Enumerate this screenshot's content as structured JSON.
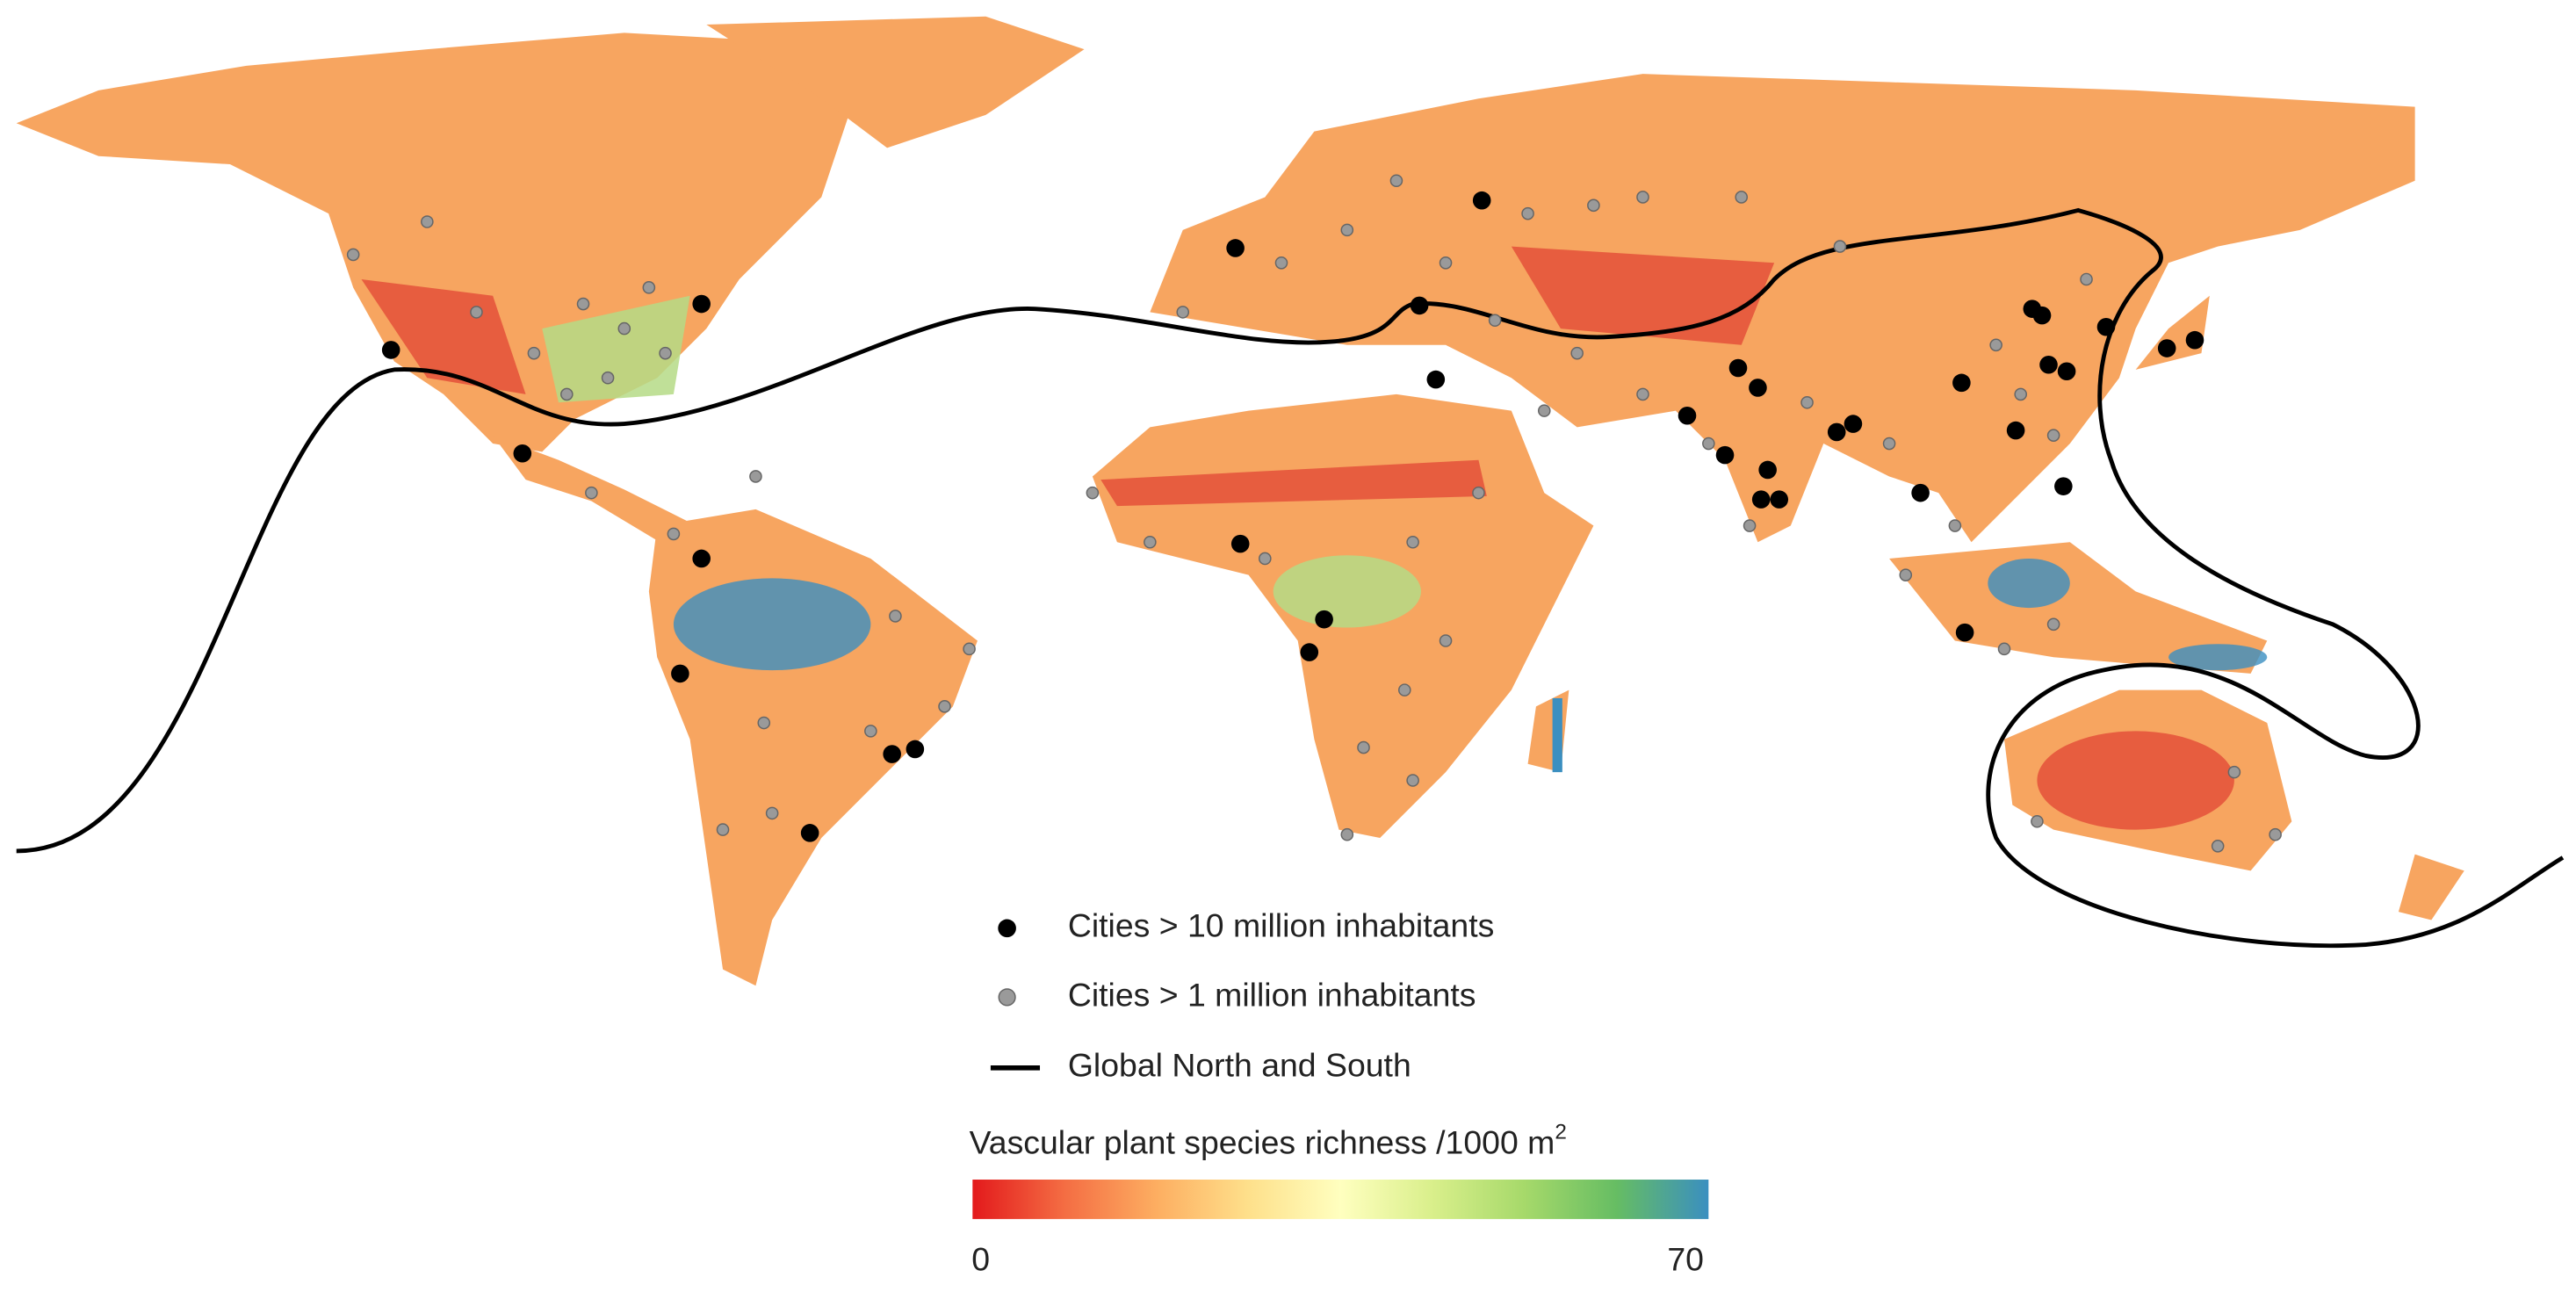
{
  "map": {
    "legend": {
      "items": [
        {
          "label": "Cities > 10 million inhabitants",
          "color": "#000000"
        },
        {
          "label": "Cities > 1 million inhabitants",
          "color": "#9a9a9a"
        },
        {
          "label": "Global North and South",
          "color": "#000000"
        }
      ]
    },
    "colorbar": {
      "title": "Vascular plant species richness /1000 m",
      "title_superscript": "2",
      "min": 0,
      "max": 70,
      "colors": [
        "#e31a1c",
        "#f46d43",
        "#fdae61",
        "#fee08b",
        "#ffffbf",
        "#d9ef8b",
        "#a6d96a",
        "#66bd63",
        "#3a8fc0"
      ]
    }
  }
}
